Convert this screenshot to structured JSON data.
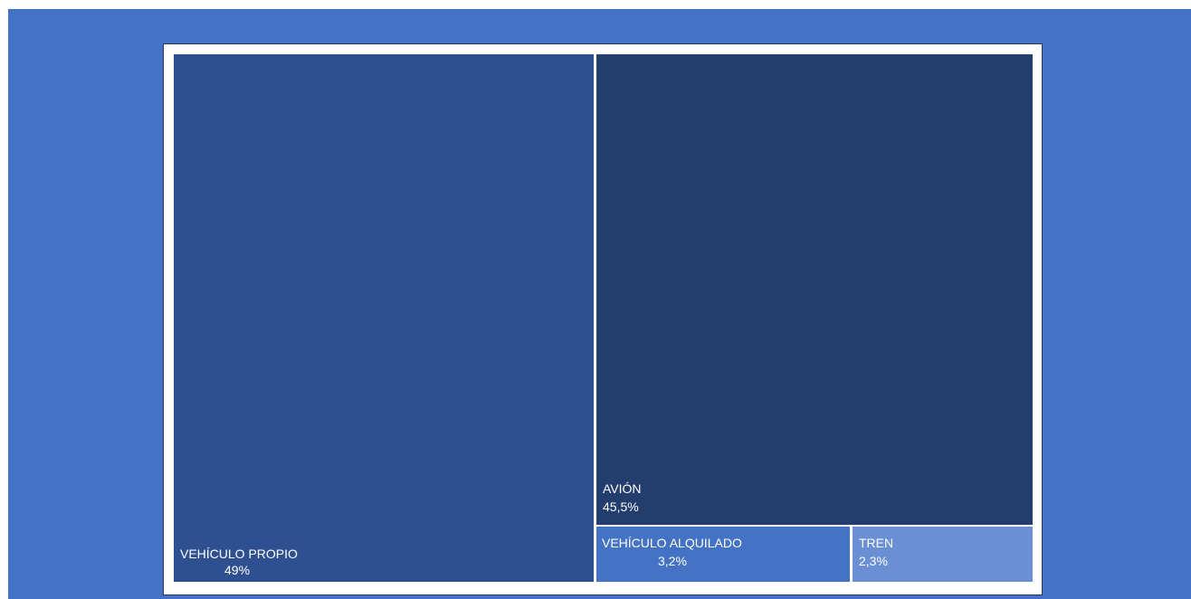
{
  "chart_data": {
    "type": "treemap",
    "items": [
      {
        "label": "VEHÍCULO PROPIO",
        "value_label": "49%",
        "value": 49,
        "color": "#2e5090"
      },
      {
        "label": "AVIÓN",
        "value_label": "45,5%",
        "value": 45.5,
        "color": "#223d6e"
      },
      {
        "label": "VEHÍCULO ALQUILADO",
        "value_label": "3,2%",
        "value": 3.2,
        "color": "#4472c4"
      },
      {
        "label": "TREN",
        "value_label": "2,3%",
        "value": 2.3,
        "color": "#6a8fd4"
      }
    ]
  },
  "colors": {
    "background": "#4472c4",
    "frame": "#ffffff"
  }
}
